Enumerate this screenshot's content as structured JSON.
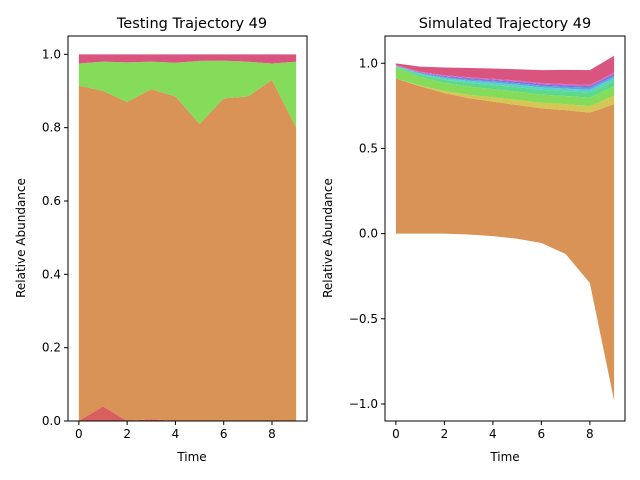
{
  "chart_data": [
    {
      "type": "area",
      "title": "Testing Trajectory 49",
      "xlabel": "Time",
      "ylabel": "Relative Abundance",
      "xlim": [
        -0.45,
        9.45
      ],
      "ylim": [
        0,
        1.05
      ],
      "xticks": [
        "0",
        "2",
        "4",
        "6",
        "8"
      ],
      "xtick_values": [
        0,
        2,
        4,
        6,
        8
      ],
      "yticks": [
        "0.0",
        "0.2",
        "0.4",
        "0.6",
        "0.8",
        "1.0"
      ],
      "ytick_values": [
        0,
        0.2,
        0.4,
        0.6,
        0.8,
        1.0
      ],
      "x": [
        0,
        1,
        2,
        3,
        4,
        5,
        6,
        7,
        8,
        9
      ],
      "series": [
        {
          "color": "#d95f5f",
          "values": [
            0.0,
            0.04,
            0.0,
            0.005,
            0.0,
            0.0,
            0.0,
            0.0,
            0.0,
            0.0
          ]
        },
        {
          "color": "#d99356",
          "values": [
            0.915,
            0.86,
            0.87,
            0.9,
            0.885,
            0.81,
            0.88,
            0.885,
            0.93,
            0.8
          ]
        },
        {
          "color": "#84dc5a",
          "values": [
            0.06,
            0.08,
            0.108,
            0.075,
            0.092,
            0.172,
            0.103,
            0.095,
            0.045,
            0.18
          ]
        },
        {
          "color": "#d9547e",
          "values": [
            0.025,
            0.02,
            0.022,
            0.02,
            0.023,
            0.018,
            0.017,
            0.02,
            0.025,
            0.02
          ]
        }
      ]
    },
    {
      "type": "area",
      "title": "Simulated Trajectory 49",
      "xlabel": "Time",
      "ylabel": "Relative Abundance",
      "xlim": [
        -0.45,
        9.45
      ],
      "ylim": [
        -1.1,
        1.16
      ],
      "xticks": [
        "0",
        "2",
        "4",
        "6",
        "8"
      ],
      "xtick_values": [
        0,
        2,
        4,
        6,
        8
      ],
      "yticks": [
        "−1.0",
        "−0.5",
        "0.0",
        "0.5",
        "1.0"
      ],
      "ytick_values": [
        -1.0,
        -0.5,
        0.0,
        0.5,
        1.0
      ],
      "x": [
        0,
        1,
        2,
        3,
        4,
        5,
        6,
        7,
        8,
        9
      ],
      "baseline": [
        0.0,
        0.0,
        0.0,
        -0.005,
        -0.015,
        -0.03,
        -0.055,
        -0.12,
        -0.29,
        -0.98
      ],
      "series": [
        {
          "color": "#d99356",
          "values": [
            0.91,
            0.865,
            0.825,
            0.8,
            0.79,
            0.785,
            0.79,
            0.845,
            1.0,
            1.74
          ]
        },
        {
          "color": "#d4c755",
          "values": [
            0.0,
            0.005,
            0.012,
            0.02,
            0.025,
            0.03,
            0.033,
            0.035,
            0.038,
            0.05
          ]
        },
        {
          "color": "#84dc5a",
          "values": [
            0.065,
            0.05,
            0.048,
            0.048,
            0.048,
            0.048,
            0.048,
            0.048,
            0.05,
            0.055
          ]
        },
        {
          "color": "#5ed98b",
          "values": [
            0.005,
            0.012,
            0.018,
            0.022,
            0.025,
            0.027,
            0.028,
            0.028,
            0.03,
            0.03
          ]
        },
        {
          "color": "#59d4c6",
          "values": [
            0.003,
            0.007,
            0.01,
            0.012,
            0.013,
            0.014,
            0.015,
            0.015,
            0.016,
            0.02
          ]
        },
        {
          "color": "#5aa8dc",
          "values": [
            0.002,
            0.004,
            0.006,
            0.008,
            0.009,
            0.01,
            0.01,
            0.011,
            0.012,
            0.012
          ]
        },
        {
          "color": "#6a6fdc",
          "values": [
            0.001,
            0.002,
            0.004,
            0.005,
            0.005,
            0.006,
            0.006,
            0.006,
            0.007,
            0.007
          ]
        },
        {
          "color": "#a860d9",
          "values": [
            0.001,
            0.002,
            0.003,
            0.004,
            0.004,
            0.004,
            0.004,
            0.005,
            0.005,
            0.005
          ]
        },
        {
          "color": "#d95fc4",
          "values": [
            0.002,
            0.003,
            0.004,
            0.004,
            0.005,
            0.005,
            0.005,
            0.005,
            0.005,
            0.005
          ]
        },
        {
          "color": "#d9547e",
          "values": [
            0.01,
            0.03,
            0.045,
            0.054,
            0.06,
            0.066,
            0.076,
            0.083,
            0.087,
            0.1
          ]
        }
      ]
    }
  ]
}
